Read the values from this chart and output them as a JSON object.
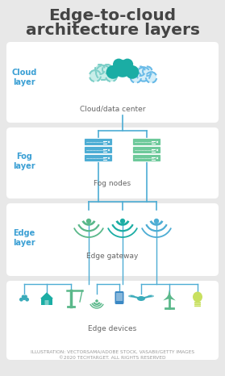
{
  "title_line1": "Edge-to-cloud",
  "title_line2": "architecture layers",
  "bg_color": "#e8e8e8",
  "panel_color": "#ffffff",
  "title_color": "#444444",
  "label_color": "#3a9fd4",
  "body_text_color": "#666666",
  "teal_solid": "#1bada4",
  "teal_light": "#7dcfc8",
  "blue_dashed": "#6abbe8",
  "fog_blue": "#4dadd4",
  "fog_green": "#6dc99a",
  "line_color": "#4dadd4",
  "gw_green": "#5ab88a",
  "gw_teal": "#1bada4",
  "gw_blue": "#4dadd4",
  "caption": "ILLUSTRATION: VECTORSAMA/ADOBE STOCK, VASABII/GETTY IMAGES\n©2020 TECHTARGET. ALL RIGHTS RESERVED"
}
